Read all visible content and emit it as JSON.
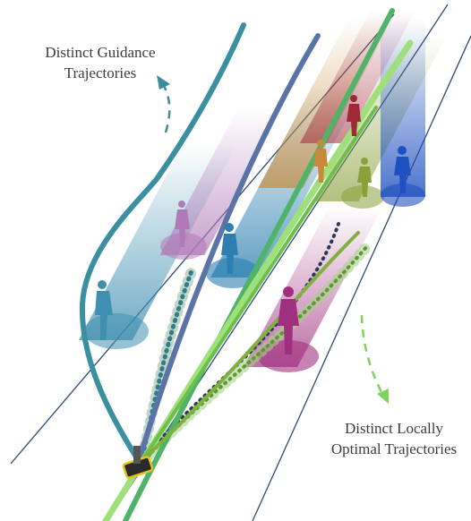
{
  "labels": {
    "guidance": {
      "line1": "Distinct Guidance",
      "line2": "Trajectories"
    },
    "local": {
      "line1": "Distinct Locally",
      "line2": "Optimal Trajectories"
    }
  },
  "colors": {
    "guidance_arrow": "#3c8d9a",
    "local_arrow": "#7ed35a",
    "lane_line": "#2c4a7a",
    "guidance_teal": "#3a8fa0",
    "guidance_steel": "#5a74a8",
    "local_green": "#6cc04a",
    "local_lime": "#9ee07a",
    "robot": "#e6c21a"
  },
  "pedestrians": [
    {
      "name": "pedestrian-teal-left",
      "color": "#3f8fb0"
    },
    {
      "name": "pedestrian-violet",
      "color": "#b07ab8"
    },
    {
      "name": "pedestrian-blue-center",
      "color": "#2c7fb0"
    },
    {
      "name": "pedestrian-magenta",
      "color": "#a0307f"
    },
    {
      "name": "pedestrian-orange",
      "color": "#c88a3a"
    },
    {
      "name": "pedestrian-red",
      "color": "#a02838"
    },
    {
      "name": "pedestrian-olive",
      "color": "#8aa03a"
    },
    {
      "name": "pedestrian-blue-right",
      "color": "#2050c0"
    }
  ]
}
